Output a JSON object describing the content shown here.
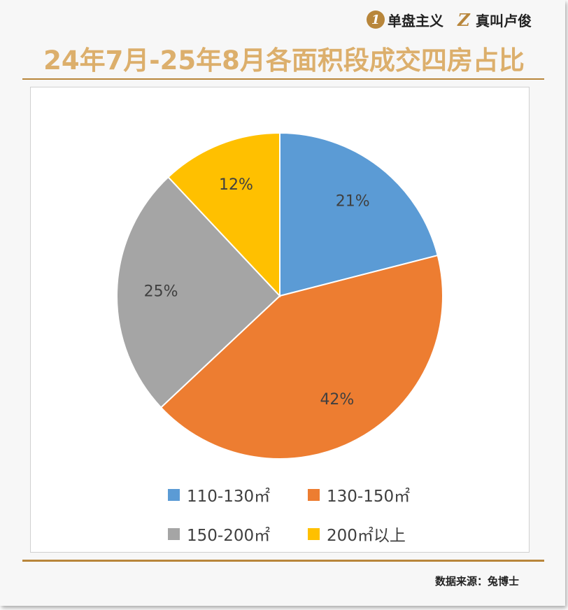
{
  "brand": {
    "left_logo": "1",
    "left_text": "单盘主义",
    "right_logo": "Z",
    "right_text": "真叫卢俊"
  },
  "title": "24年7月-25年8月各面积段成交四房占比",
  "source": "数据来源：兔博士",
  "colors": {
    "title": "#dcaf6c",
    "accent": "#b8863b"
  },
  "chart_data": {
    "type": "pie",
    "title": "",
    "start_angle_deg": 0,
    "direction": "clockwise",
    "legend_position": "bottom",
    "slices": [
      {
        "name": "110-130㎡",
        "value": 21,
        "label": "21%",
        "color": "#5b9bd5"
      },
      {
        "name": "130-150㎡",
        "value": 42,
        "label": "42%",
        "color": "#ed7d31"
      },
      {
        "name": "150-200㎡",
        "value": 25,
        "label": "25%",
        "color": "#a5a5a5"
      },
      {
        "name": "200㎡以上",
        "value": 12,
        "label": "12%",
        "color": "#ffc000"
      }
    ]
  }
}
